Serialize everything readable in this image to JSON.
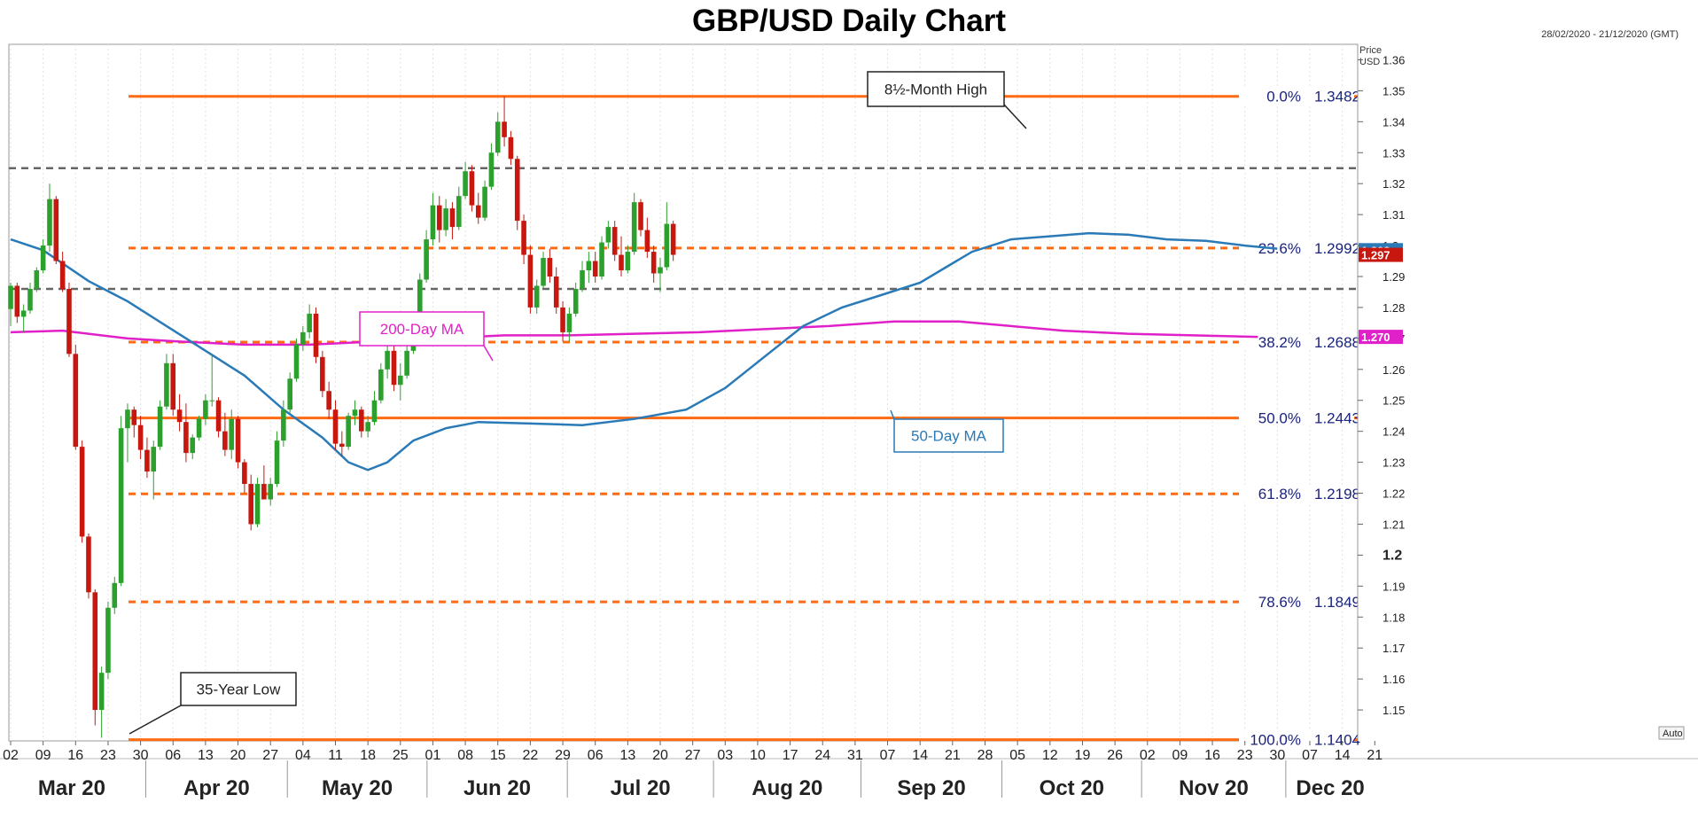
{
  "title": "GBP/USD Daily Chart",
  "date_range": "28/02/2020 - 21/12/2020 (GMT)",
  "price_axis_label_1": "Price",
  "price_axis_label_2": "USD",
  "auto_label": "Auto",
  "colors": {
    "up": "#2ca02c",
    "down": "#c8170f",
    "ma50": "#2a7ab8",
    "ma200": "#e020c8",
    "fib_line": "#ff6a13",
    "ref_line": "#666666",
    "fib_text": "#1a237e"
  },
  "chart_data": {
    "type": "candlestick",
    "title": "GBP/USD Daily Chart",
    "ylim": [
      1.14,
      1.365
    ],
    "y_ticks": [
      "1.15",
      "1.16",
      "1.17",
      "1.18",
      "1.19",
      "1.2",
      "1.21",
      "1.22",
      "1.23",
      "1.24",
      "1.25",
      "1.26",
      "1.27",
      "1.28",
      "1.29",
      "1.3",
      "1.31",
      "1.32",
      "1.33",
      "1.34",
      "1.35",
      "1.36"
    ],
    "x_ticks": [
      "02",
      "09",
      "16",
      "23",
      "30",
      "06",
      "13",
      "20",
      "27",
      "04",
      "11",
      "18",
      "25",
      "01",
      "08",
      "15",
      "22",
      "29",
      "06",
      "13",
      "20",
      "27",
      "03",
      "10",
      "17",
      "24",
      "31",
      "07",
      "14",
      "21",
      "28",
      "05",
      "12",
      "19",
      "26",
      "02",
      "09",
      "16",
      "23",
      "30",
      "07",
      "14",
      "21"
    ],
    "months": [
      "Mar 20",
      "Apr 20",
      "May 20",
      "Jun 20",
      "Jul 20",
      "Aug 20",
      "Sep 20",
      "Oct 20",
      "Nov 20",
      "Dec 20"
    ],
    "price_tags": [
      {
        "value": "1.298",
        "y": 1.2985,
        "color": "#2a7ab8"
      },
      {
        "value": "1.297",
        "y": 1.297,
        "color": "#c8170f"
      },
      {
        "value": "1.270",
        "y": 1.2705,
        "color": "#e020c8"
      }
    ],
    "fib_levels": [
      {
        "label": "0.0%",
        "value": "1.3482",
        "y": 1.3482,
        "style": "solid"
      },
      {
        "label": "23.6%",
        "value": "1.2992",
        "y": 1.2992,
        "style": "dashed"
      },
      {
        "label": "38.2%",
        "value": "1.2688",
        "y": 1.2688,
        "style": "dashed"
      },
      {
        "label": "50.0%",
        "value": "1.2443",
        "y": 1.2443,
        "style": "solid"
      },
      {
        "label": "61.8%",
        "value": "1.2198",
        "y": 1.2198,
        "style": "dashed"
      },
      {
        "label": "78.6%",
        "value": "1.1849",
        "y": 1.1849,
        "style": "dashed"
      },
      {
        "label": "100.0%",
        "value": "1.1404",
        "y": 1.1404,
        "style": "solid"
      }
    ],
    "ref_levels": [
      {
        "value": "1.325",
        "y": 1.325
      },
      {
        "value": "1.286",
        "y": 1.286
      }
    ],
    "annotations": [
      {
        "text": "8½-Month High",
        "kind": "box"
      },
      {
        "text": "35-Year Low",
        "kind": "box"
      },
      {
        "text": "200-Day MA",
        "kind": "box",
        "color": "#e020c8"
      },
      {
        "text": "50-Day MA",
        "kind": "box",
        "color": "#2a7ab8"
      }
    ],
    "ma50": [
      [
        0,
        1.302
      ],
      [
        5,
        1.2985
      ],
      [
        12,
        1.2885
      ],
      [
        18,
        1.282
      ],
      [
        24,
        1.274
      ],
      [
        30,
        1.266
      ],
      [
        36,
        1.258
      ],
      [
        42,
        1.247
      ],
      [
        48,
        1.238
      ],
      [
        52,
        1.23
      ],
      [
        55,
        1.2275
      ],
      [
        58,
        1.23
      ],
      [
        62,
        1.237
      ],
      [
        67,
        1.241
      ],
      [
        72,
        1.243
      ],
      [
        80,
        1.2425
      ],
      [
        88,
        1.242
      ],
      [
        96,
        1.244
      ],
      [
        104,
        1.247
      ],
      [
        110,
        1.254
      ],
      [
        116,
        1.264
      ],
      [
        122,
        1.274
      ],
      [
        128,
        1.28
      ],
      [
        134,
        1.284
      ],
      [
        140,
        1.288
      ],
      [
        144,
        1.293
      ],
      [
        148,
        1.298
      ],
      [
        154,
        1.302
      ],
      [
        160,
        1.303
      ],
      [
        166,
        1.304
      ],
      [
        172,
        1.3035
      ],
      [
        178,
        1.302
      ],
      [
        184,
        1.3015
      ],
      [
        190,
        1.3
      ],
      [
        195,
        1.299
      ]
    ],
    "ma200": [
      [
        0,
        1.272
      ],
      [
        8,
        1.2725
      ],
      [
        18,
        1.27
      ],
      [
        26,
        1.269
      ],
      [
        36,
        1.268
      ],
      [
        46,
        1.268
      ],
      [
        56,
        1.269
      ],
      [
        66,
        1.27
      ],
      [
        76,
        1.271
      ],
      [
        86,
        1.271
      ],
      [
        96,
        1.2715
      ],
      [
        106,
        1.272
      ],
      [
        116,
        1.273
      ],
      [
        126,
        1.274
      ],
      [
        136,
        1.2755
      ],
      [
        146,
        1.2755
      ],
      [
        154,
        1.274
      ],
      [
        162,
        1.2725
      ],
      [
        172,
        1.2715
      ],
      [
        182,
        1.271
      ],
      [
        192,
        1.2705
      ]
    ],
    "candles": [
      [
        0,
        1.2795,
        1.288,
        1.274,
        1.287
      ],
      [
        1,
        1.287,
        1.288,
        1.275,
        1.277
      ],
      [
        2,
        1.277,
        1.281,
        1.272,
        1.279
      ],
      [
        3,
        1.279,
        1.288,
        1.278,
        1.286
      ],
      [
        4,
        1.286,
        1.293,
        1.285,
        1.292
      ],
      [
        5,
        1.292,
        1.302,
        1.291,
        1.3
      ],
      [
        6,
        1.3,
        1.32,
        1.298,
        1.315
      ],
      [
        7,
        1.315,
        1.316,
        1.294,
        1.295
      ],
      [
        8,
        1.295,
        1.298,
        1.285,
        1.286
      ],
      [
        9,
        1.286,
        1.288,
        1.264,
        1.265
      ],
      [
        10,
        1.265,
        1.268,
        1.234,
        1.235
      ],
      [
        11,
        1.235,
        1.237,
        1.204,
        1.206
      ],
      [
        12,
        1.206,
        1.207,
        1.186,
        1.188
      ],
      [
        13,
        1.188,
        1.189,
        1.145,
        1.15
      ],
      [
        14,
        1.15,
        1.164,
        1.141,
        1.162
      ],
      [
        15,
        1.162,
        1.185,
        1.16,
        1.183
      ],
      [
        16,
        1.183,
        1.193,
        1.181,
        1.191
      ],
      [
        17,
        1.191,
        1.245,
        1.19,
        1.241
      ],
      [
        18,
        1.241,
        1.249,
        1.23,
        1.247
      ],
      [
        19,
        1.247,
        1.248,
        1.238,
        1.242
      ],
      [
        20,
        1.242,
        1.245,
        1.231,
        1.234
      ],
      [
        21,
        1.234,
        1.238,
        1.225,
        1.227
      ],
      [
        22,
        1.227,
        1.237,
        1.218,
        1.235
      ],
      [
        23,
        1.235,
        1.25,
        1.234,
        1.248
      ],
      [
        24,
        1.248,
        1.265,
        1.247,
        1.262
      ],
      [
        25,
        1.262,
        1.265,
        1.245,
        1.247
      ],
      [
        26,
        1.247,
        1.252,
        1.24,
        1.243
      ],
      [
        27,
        1.243,
        1.249,
        1.23,
        1.233
      ],
      [
        28,
        1.233,
        1.239,
        1.231,
        1.238
      ],
      [
        29,
        1.238,
        1.245,
        1.237,
        1.244
      ],
      [
        30,
        1.244,
        1.252,
        1.242,
        1.25
      ],
      [
        31,
        1.25,
        1.265,
        1.248,
        1.25
      ],
      [
        32,
        1.25,
        1.251,
        1.238,
        1.24
      ],
      [
        33,
        1.24,
        1.246,
        1.232,
        1.234
      ],
      [
        34,
        1.234,
        1.247,
        1.231,
        1.244
      ],
      [
        35,
        1.244,
        1.245,
        1.228,
        1.23
      ],
      [
        36,
        1.23,
        1.231,
        1.22,
        1.223
      ],
      [
        37,
        1.223,
        1.226,
        1.208,
        1.21
      ],
      [
        38,
        1.21,
        1.225,
        1.209,
        1.223
      ],
      [
        39,
        1.223,
        1.229,
        1.22,
        1.218
      ],
      [
        40,
        1.218,
        1.225,
        1.216,
        1.223
      ],
      [
        41,
        1.223,
        1.24,
        1.222,
        1.237
      ],
      [
        42,
        1.237,
        1.25,
        1.235,
        1.247
      ],
      [
        43,
        1.247,
        1.259,
        1.246,
        1.257
      ],
      [
        44,
        1.257,
        1.27,
        1.256,
        1.268
      ],
      [
        45,
        1.268,
        1.274,
        1.266,
        1.272
      ],
      [
        46,
        1.272,
        1.281,
        1.27,
        1.278
      ],
      [
        47,
        1.278,
        1.28,
        1.262,
        1.264
      ],
      [
        48,
        1.264,
        1.266,
        1.251,
        1.253
      ],
      [
        49,
        1.253,
        1.256,
        1.244,
        1.247
      ],
      [
        50,
        1.247,
        1.25,
        1.234,
        1.236
      ],
      [
        51,
        1.236,
        1.24,
        1.232,
        1.235
      ],
      [
        52,
        1.235,
        1.246,
        1.234,
        1.245
      ],
      [
        53,
        1.245,
        1.25,
        1.242,
        1.247
      ],
      [
        54,
        1.247,
        1.248,
        1.238,
        1.24
      ],
      [
        55,
        1.24,
        1.245,
        1.238,
        1.243
      ],
      [
        56,
        1.243,
        1.253,
        1.242,
        1.25
      ],
      [
        57,
        1.25,
        1.262,
        1.249,
        1.26
      ],
      [
        58,
        1.26,
        1.269,
        1.257,
        1.266
      ],
      [
        59,
        1.266,
        1.269,
        1.253,
        1.255
      ],
      [
        60,
        1.255,
        1.262,
        1.25,
        1.258
      ],
      [
        61,
        1.258,
        1.268,
        1.257,
        1.266
      ],
      [
        62,
        1.266,
        1.278,
        1.265,
        1.275
      ],
      [
        63,
        1.275,
        1.291,
        1.274,
        1.289
      ],
      [
        64,
        1.289,
        1.305,
        1.288,
        1.302
      ],
      [
        65,
        1.302,
        1.317,
        1.3,
        1.313
      ],
      [
        66,
        1.313,
        1.316,
        1.301,
        1.305
      ],
      [
        67,
        1.305,
        1.315,
        1.303,
        1.312
      ],
      [
        68,
        1.312,
        1.314,
        1.302,
        1.306
      ],
      [
        69,
        1.306,
        1.319,
        1.305,
        1.316
      ],
      [
        70,
        1.316,
        1.327,
        1.315,
        1.324
      ],
      [
        71,
        1.324,
        1.326,
        1.311,
        1.313
      ],
      [
        72,
        1.313,
        1.317,
        1.307,
        1.309
      ],
      [
        73,
        1.309,
        1.321,
        1.308,
        1.319
      ],
      [
        74,
        1.319,
        1.333,
        1.318,
        1.33
      ],
      [
        75,
        1.33,
        1.343,
        1.329,
        1.34
      ],
      [
        76,
        1.34,
        1.3482,
        1.332,
        1.335
      ],
      [
        77,
        1.335,
        1.337,
        1.326,
        1.328
      ],
      [
        78,
        1.328,
        1.329,
        1.305,
        1.308
      ],
      [
        79,
        1.308,
        1.31,
        1.294,
        1.297
      ],
      [
        80,
        1.297,
        1.3,
        1.278,
        1.28
      ],
      [
        81,
        1.28,
        1.289,
        1.278,
        1.287
      ],
      [
        82,
        1.287,
        1.298,
        1.286,
        1.296
      ],
      [
        83,
        1.296,
        1.299,
        1.288,
        1.29
      ],
      [
        84,
        1.29,
        1.293,
        1.278,
        1.28
      ],
      [
        85,
        1.28,
        1.282,
        1.269,
        1.272
      ],
      [
        86,
        1.272,
        1.28,
        1.269,
        1.278
      ],
      [
        87,
        1.278,
        1.288,
        1.277,
        1.286
      ],
      [
        88,
        1.286,
        1.295,
        1.285,
        1.292
      ],
      [
        89,
        1.292,
        1.298,
        1.288,
        1.295
      ],
      [
        90,
        1.295,
        1.298,
        1.288,
        1.29
      ],
      [
        91,
        1.29,
        1.303,
        1.289,
        1.301
      ],
      [
        92,
        1.301,
        1.308,
        1.299,
        1.306
      ],
      [
        93,
        1.306,
        1.308,
        1.295,
        1.297
      ],
      [
        94,
        1.297,
        1.303,
        1.29,
        1.292
      ],
      [
        95,
        1.292,
        1.3,
        1.291,
        1.298
      ],
      [
        96,
        1.298,
        1.317,
        1.297,
        1.314
      ],
      [
        97,
        1.314,
        1.315,
        1.303,
        1.305
      ],
      [
        98,
        1.305,
        1.309,
        1.296,
        1.298
      ],
      [
        99,
        1.298,
        1.3,
        1.288,
        1.291
      ],
      [
        100,
        1.291,
        1.296,
        1.285,
        1.293
      ],
      [
        101,
        1.293,
        1.314,
        1.292,
        1.307
      ],
      [
        102,
        1.307,
        1.308,
        1.295,
        1.297
      ]
    ]
  }
}
